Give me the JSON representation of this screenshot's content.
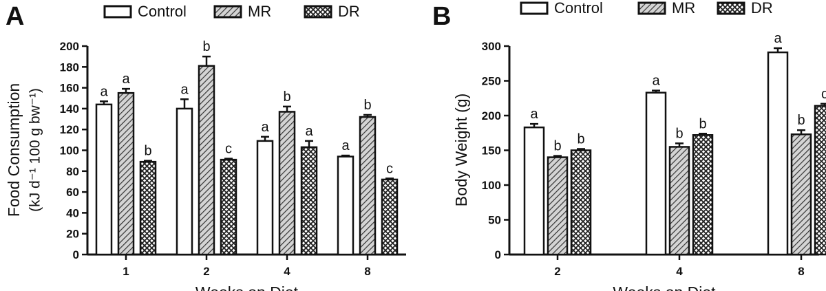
{
  "colors": {
    "ink": "#111111",
    "control_fill": "#ffffff",
    "mr_hatch_bg": "#d4d4d4",
    "mr_hatch_line": "#333333",
    "dr_hatch_bg": "#ffffff",
    "dr_hatch_line": "#222222"
  },
  "legend_series": [
    "Control",
    "MR",
    "DR"
  ],
  "chart_data": [
    {
      "panel_label": "A",
      "type": "bar",
      "xlabel": "Weeks on Diet",
      "ylabel_line1": "Food Consumption",
      "ylabel_line2": "(kJ d⁻¹ 100 g bw⁻¹)",
      "ylim": [
        0,
        200
      ],
      "yticks": [
        0,
        20,
        40,
        60,
        80,
        100,
        120,
        140,
        160,
        180,
        200
      ],
      "categories": [
        "1",
        "2",
        "4",
        "8"
      ],
      "series": [
        {
          "name": "Control",
          "values": [
            144,
            140,
            109,
            94
          ],
          "errors": [
            3,
            9,
            4,
            1
          ],
          "letters": [
            "a",
            "a",
            "a",
            "a"
          ]
        },
        {
          "name": "MR",
          "values": [
            155,
            181,
            137,
            132
          ],
          "errors": [
            4,
            9,
            5,
            2
          ],
          "letters": [
            "a",
            "b",
            "b",
            "b"
          ]
        },
        {
          "name": "DR",
          "values": [
            89,
            91,
            103,
            72
          ],
          "errors": [
            1,
            1,
            6,
            1
          ],
          "letters": [
            "b",
            "c",
            "a",
            "c"
          ]
        }
      ],
      "legend_position": "top",
      "grid": false
    },
    {
      "panel_label": "B",
      "type": "bar",
      "xlabel": "Weeks on Diet",
      "ylabel_line1": "Body Weight (g)",
      "ylabel_line2": "",
      "ylim": [
        0,
        300
      ],
      "yticks": [
        0,
        50,
        100,
        150,
        200,
        250,
        300
      ],
      "categories": [
        "2",
        "4",
        "8"
      ],
      "series": [
        {
          "name": "Control",
          "values": [
            183,
            233,
            291
          ],
          "errors": [
            5,
            3,
            6
          ],
          "letters": [
            "a",
            "a",
            "a"
          ]
        },
        {
          "name": "MR",
          "values": [
            140,
            155,
            173
          ],
          "errors": [
            2,
            5,
            6
          ],
          "letters": [
            "b",
            "b",
            "b"
          ]
        },
        {
          "name": "DR",
          "values": [
            150,
            172,
            214
          ],
          "errors": [
            2,
            2,
            3
          ],
          "letters": [
            "b",
            "b",
            "c"
          ]
        }
      ],
      "legend_position": "top",
      "grid": false
    }
  ]
}
